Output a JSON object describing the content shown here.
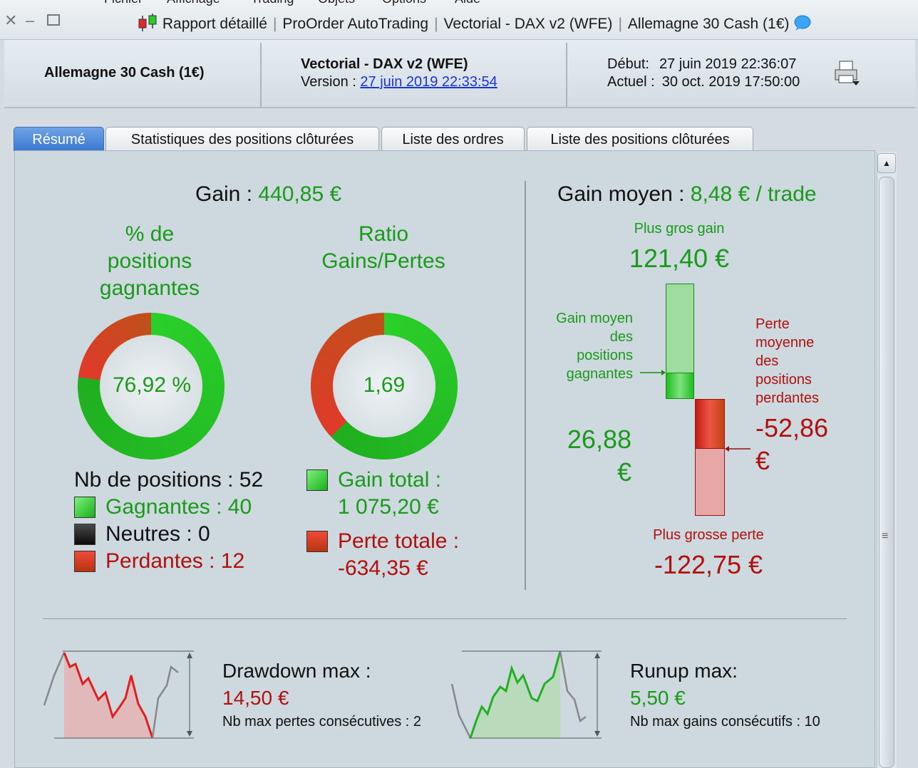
{
  "window": {
    "menu": [
      "Fichier",
      "Affichage",
      "Trading",
      "Objets",
      "Options",
      "Aide"
    ],
    "title_parts": [
      "Rapport détaillé",
      "ProOrder AutoTrading",
      "Vectorial - DAX v2 (WFE)",
      "Allemagne 30 Cash (1€)"
    ],
    "separator": "|"
  },
  "header": {
    "instrument": "Allemagne 30 Cash (1€)",
    "strategy_name": "Vectorial - DAX v2 (WFE)",
    "version_label": "Version :",
    "version_link": "27 juin 2019 22:33:54",
    "start_label": "Début:",
    "start_value": "27 juin 2019 22:36:07",
    "current_label": "Actuel :",
    "current_value": "30 oct. 2019 17:50:00"
  },
  "tabs": [
    "Résumé",
    "Statistiques des positions clôturées",
    "Liste des ordres",
    "Liste des positions clôturées"
  ],
  "summary": {
    "gain_label": "Gain :",
    "gain_value": "440,85 €",
    "win_pct_title_1": "% de",
    "win_pct_title_2": "positions",
    "win_pct_title_3": "gagnantes",
    "win_pct_value": "76,92 %",
    "win_pct_fraction": 0.7692,
    "ratio_title_1": "Ratio",
    "ratio_title_2": "Gains/Pertes",
    "ratio_value": "1,69",
    "ratio_green_fraction": 0.629,
    "nb_positions_label": "Nb de positions : 52",
    "winners_label": "Gagnantes : 40",
    "neutral_label": "Neutres : 0",
    "losers_label": "Perdantes : 12",
    "total_gain_label": "Gain total :",
    "total_gain_value": "1 075,20 €",
    "total_loss_label": "Perte totale :",
    "total_loss_value": "-634,35 €"
  },
  "avg": {
    "title_label": "Gain moyen :",
    "title_value": "8,48 € / trade",
    "biggest_gain_label": "Plus gros gain",
    "biggest_gain_value": "121,40 €",
    "avg_win_label_1": "Gain moyen",
    "avg_win_label_2": "des",
    "avg_win_label_3": "positions",
    "avg_win_label_4": "gagnantes",
    "avg_win_value_1": "26,88",
    "avg_win_value_2": "€",
    "avg_loss_label_1": "Perte",
    "avg_loss_label_2": "moyenne",
    "avg_loss_label_3": "des",
    "avg_loss_label_4": "positions",
    "avg_loss_label_5": "perdantes",
    "avg_loss_value_1": "-52,86",
    "avg_loss_value_2": "€",
    "biggest_loss_label": "Plus grosse perte",
    "biggest_loss_value": "-122,75 €"
  },
  "drawdown": {
    "title": "Drawdown max :",
    "value": "14,50 €",
    "consecutive": "Nb max pertes consécutives : 2"
  },
  "runup": {
    "title": "Runup max:",
    "value": "5,50 €",
    "consecutive": "Nb max gains consécutifs : 10"
  },
  "colors": {
    "green": "#1a9a1a",
    "red": "#b0100e",
    "tab_active": "#3a78cf"
  }
}
